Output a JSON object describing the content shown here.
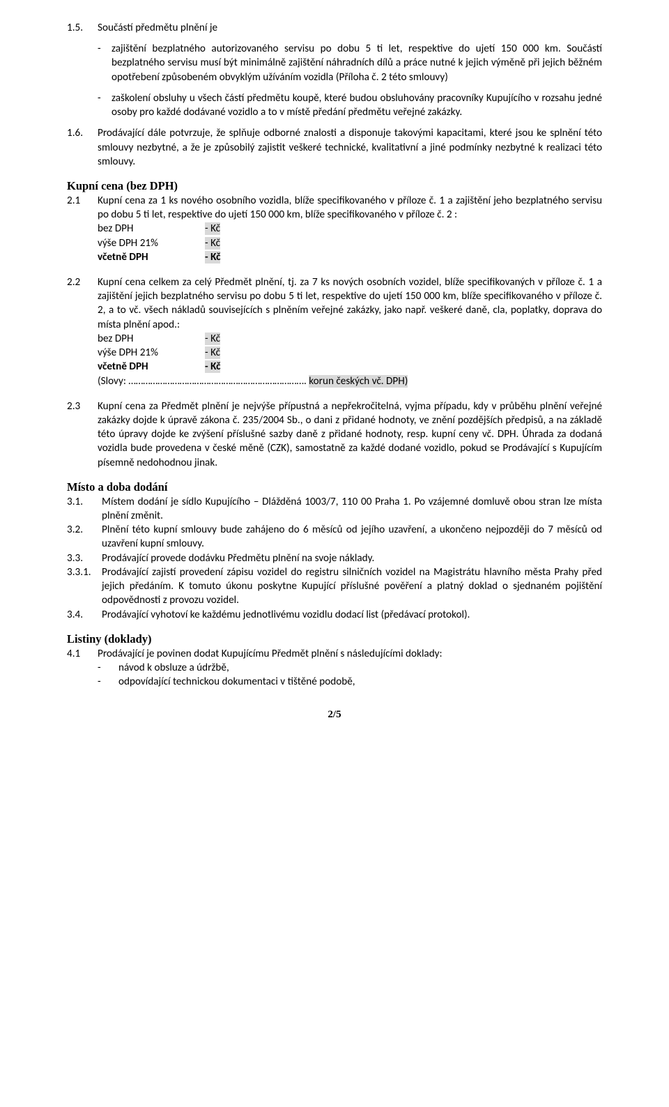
{
  "s15": {
    "num": "1.5.",
    "intro": "Součástí předmětu plnění je",
    "b1": "zajištění bezplatného autorizovaného servisu po dobu 5 ti let, respektive do ujetí 150 000 km. Součástí bezplatného servisu musí být minimálně zajištění náhradních dílů a práce nutné k jejich výměně při jejich běžném opotřebení způsobeném obvyklým užíváním vozidla (Příloha č. 2 této smlouvy)",
    "b2": "zaškolení obsluhy u všech částí předmětu koupě, které budou obsluhovány pracovníky Kupujícího v rozsahu jedné osoby pro každé dodávané vozidlo a to v místě předání předmětu veřejné zakázky."
  },
  "s16": {
    "num": "1.6.",
    "txt": "Prodávající dále potvrzuje, že splňuje odborné znalosti a disponuje takovými kapacitami, které jsou ke splnění této smlouvy nezbytné, a že je způsobilý zajistit veškeré technické, kvalitativní a jiné podmínky nezbytné k realizaci této smlouvy."
  },
  "h_kupni": "Kupní cena (bez DPH)",
  "s21": {
    "num": "2.1",
    "txt": "Kupní cena za 1 ks nového osobního vozidla, blíže specifikovaného v příloze č. 1 a zajištění jeho bezplatného servisu po dobu 5 ti let, respektive do ujetí 150 000 km, blíže specifikovaného v příloze č. 2 :",
    "r1l": "bez DPH",
    "r1v": "- Kč",
    "r2l": "výše DPH 21%",
    "r2v": "- Kč",
    "r3l": "včetně DPH",
    "r3v": "- Kč"
  },
  "s22": {
    "num": "2.2",
    "txt": "Kupní cena celkem za celý Předmět plnění, tj. za 7 ks nových osobních vozidel, blíže specifikovaných v příloze č. 1 a zajištění jejich bezplatného servisu po dobu 5 ti let, respektive do ujetí 150 000 km, blíže specifikovaného v příloze č. 2, a to vč. všech nákladů souvisejících s plněním veřejné zakázky, jako např. veškeré daně, cla, poplatky, doprava do místa plnění apod.:",
    "r1l": "bez DPH",
    "r1v": "- Kč",
    "r2l": "výše DPH 21%",
    "r2v": "- Kč",
    "r3l": "včetně DPH",
    "r3v": "- Kč",
    "slovy_a": "(Slovy: ………………………………………………………………. ",
    "slovy_b": "korun českých vč. DPH)"
  },
  "s23": {
    "num": "2.3",
    "txt": "Kupní cena za Předmět plnění je nejvýše přípustná a nepřekročitelná, vyjma případu, kdy v průběhu plnění veřejné zakázky dojde k úpravě zákona č. 235/2004 Sb., o dani z přidané hodnoty, ve znění pozdějších předpisů, a na základě této úpravy dojde ke zvýšení příslušné sazby daně z přidané hodnoty, resp. kupní ceny vč. DPH. Úhrada za dodaná vozidla bude provedena v české měně (CZK), samostatně za každé dodané vozidlo, pokud se Prodávající s Kupujícím písemně nedohodnou jinak."
  },
  "h_misto": "Místo a doba dodání",
  "s31": {
    "num": "3.1.",
    "txt": "Místem dodání je sídlo Kupujícího – Dlážděná 1003/7, 110 00 Praha 1. Po vzájemné domluvě obou stran lze místa plnění změnit."
  },
  "s32": {
    "num": "3.2.",
    "txt": "Plnění této kupní smlouvy bude zahájeno do 6 měsíců od jejího uzavření, a ukončeno nejpozději do 7 měsíců od uzavření kupní smlouvy."
  },
  "s33": {
    "num": "3.3.",
    "txt": "Prodávající provede dodávku Předmětu plnění na svoje náklady."
  },
  "s331": {
    "num": "3.3.1.",
    "txt": "Prodávající zajistí provedení zápisu vozidel do registru silničních vozidel na Magistrátu hlavního města Prahy před jejich předáním. K tomuto úkonu poskytne Kupující příslušné pověření a platný doklad o sjednaném pojištění odpovědnosti z provozu vozidel."
  },
  "s34": {
    "num": "3.4.",
    "txt": "Prodávající vyhotoví ke každému jednotlivému vozidlu dodací list (předávací protokol)."
  },
  "h_listiny": "Listiny (doklady)",
  "s41": {
    "num": "4.1",
    "txt": "Prodávající je povinen dodat Kupujícímu Předmět plnění s následujícími doklady:",
    "b1": "návod k obsluze a údržbě,",
    "b2": "odpovídající technickou dokumentaci v tištěné podobě,"
  },
  "footer": "2/5"
}
